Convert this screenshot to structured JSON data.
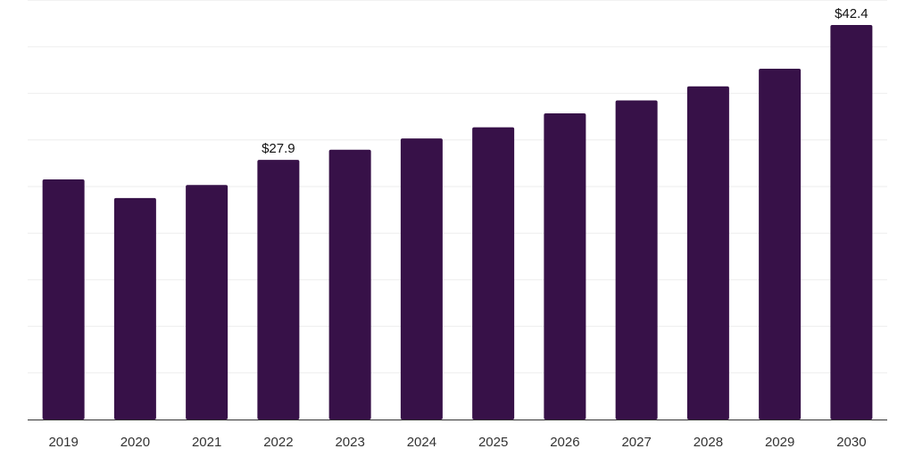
{
  "chart_data": {
    "type": "bar",
    "title": "",
    "xlabel": "",
    "ylabel": "",
    "categories": [
      "2019",
      "2020",
      "2021",
      "2022",
      "2023",
      "2024",
      "2025",
      "2026",
      "2027",
      "2028",
      "2029",
      "2030"
    ],
    "values": [
      25.8,
      23.8,
      25.2,
      27.9,
      29.0,
      30.2,
      31.4,
      32.9,
      34.3,
      35.8,
      37.7,
      42.4
    ],
    "data_labels": [
      null,
      null,
      null,
      "$27.9",
      null,
      null,
      null,
      null,
      null,
      null,
      null,
      "$42.4"
    ],
    "ylim": [
      0,
      42.4
    ],
    "grid": true,
    "legend": "none",
    "bar_color": "#371148"
  }
}
